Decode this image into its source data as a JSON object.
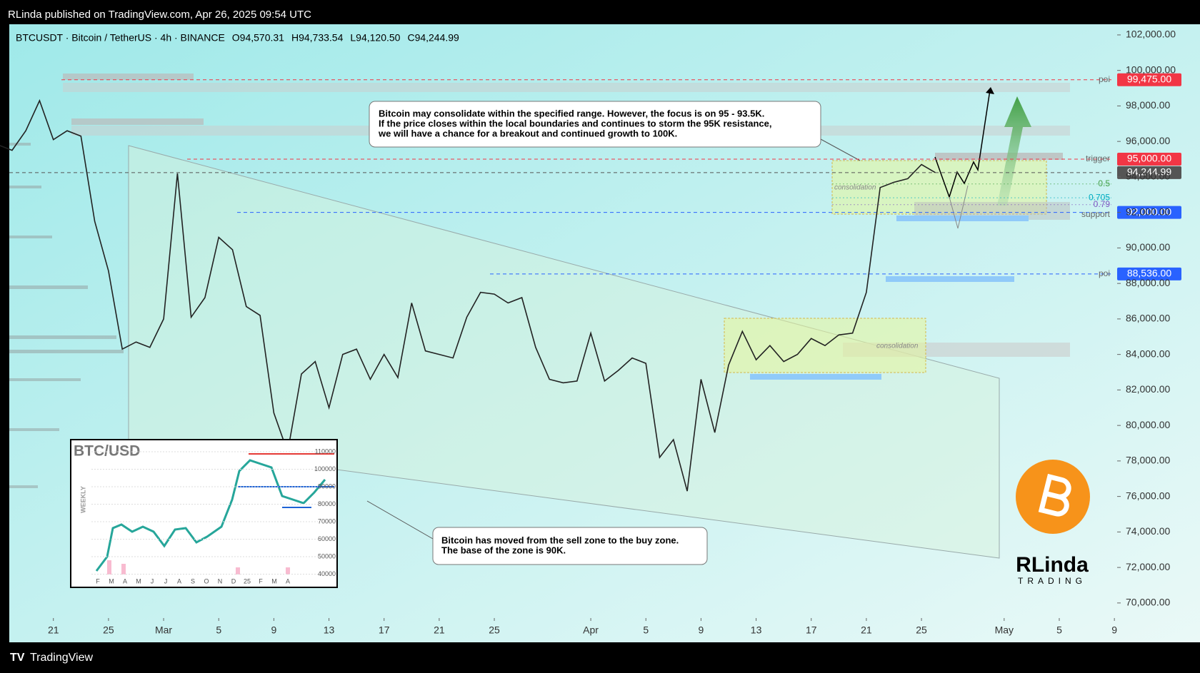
{
  "header": "RLinda published on TradingView.com, Apr 26, 2025 09:54 UTC",
  "footer": "TradingView",
  "chart_data": {
    "type": "line",
    "symbol": "BTCUSDT · Bitcoin / TetherUS · 4h · BINANCE",
    "ohlc": [
      "O94,570.31",
      "H94,733.54",
      "L94,120.50",
      "C94,244.99"
    ],
    "series": [
      {
        "color": "#222222",
        "x": [
          -4,
          -3,
          -2,
          -1,
          0,
          1,
          2,
          3,
          4,
          5,
          6,
          7,
          8,
          9,
          10,
          11,
          12,
          13,
          14,
          15,
          16,
          17,
          18,
          19,
          20,
          21,
          22,
          23,
          24,
          25,
          26,
          27,
          28,
          29,
          30,
          31,
          32,
          33,
          34,
          35,
          36,
          37,
          38,
          39,
          40,
          41,
          42,
          43,
          44,
          45,
          46,
          47,
          48,
          49,
          50,
          51,
          52,
          53,
          54,
          55,
          56,
          57,
          58,
          59,
          60,
          61,
          62,
          63,
          64
        ],
        "values": [
          95800,
          95500,
          96600,
          98300,
          96100,
          96600,
          96300,
          91500,
          88700,
          84300,
          84700,
          84400,
          86000,
          94200,
          86100,
          87200,
          90600,
          89900,
          86700,
          86200,
          80700,
          78500,
          82900,
          83600,
          81000,
          84000,
          84300,
          82600,
          84000,
          82700,
          86900,
          84200,
          84000,
          83800,
          86100,
          87500,
          87400,
          86900,
          87200,
          84400,
          82600,
          82400,
          82500,
          85200,
          82500,
          83100,
          83800,
          83500,
          78200,
          79200,
          76300,
          82600,
          79600,
          83400,
          85300,
          83700,
          84500,
          83600,
          84000,
          84900,
          84500,
          85100,
          85200,
          87500,
          93400,
          93700,
          93900,
          94700,
          94244.99
        ]
      }
    ],
    "xlim": [
      -3.2,
      77.2
    ],
    "xticks": [
      {
        "value": 0,
        "label": "21"
      },
      {
        "value": 4,
        "label": "25"
      },
      {
        "value": 8,
        "label": "Mar"
      },
      {
        "value": 12,
        "label": "5"
      },
      {
        "value": 16,
        "label": "9"
      },
      {
        "value": 20,
        "label": "13"
      },
      {
        "value": 24,
        "label": "17"
      },
      {
        "value": 28,
        "label": "21"
      },
      {
        "value": 32,
        "label": "25"
      },
      {
        "value": 39,
        "label": "Apr"
      },
      {
        "value": 43,
        "label": "5"
      },
      {
        "value": 47,
        "label": "9"
      },
      {
        "value": 51,
        "label": "13"
      },
      {
        "value": 55,
        "label": "17"
      },
      {
        "value": 59,
        "label": "21"
      },
      {
        "value": 63,
        "label": "25"
      },
      {
        "value": 69,
        "label": "May"
      },
      {
        "value": 73,
        "label": "5"
      },
      {
        "value": 77,
        "label": "9"
      }
    ],
    "ylim": [
      69150,
      102600
    ],
    "yticks": [
      {
        "value": 70000,
        "label": "70,000.00"
      },
      {
        "value": 72000,
        "label": "72,000.00"
      },
      {
        "value": 74000,
        "label": "74,000.00"
      },
      {
        "value": 76000,
        "label": "76,000.00"
      },
      {
        "value": 78000,
        "label": "78,000.00"
      },
      {
        "value": 80000,
        "label": "80,000.00"
      },
      {
        "value": 82000,
        "label": "82,000.00"
      },
      {
        "value": 84000,
        "label": "84,000.00"
      },
      {
        "value": 86000,
        "label": "86,000.00"
      },
      {
        "value": 88000,
        "label": "88,000.00"
      },
      {
        "value": 90000,
        "label": "90,000.00"
      },
      {
        "value": 92000,
        "label": "92,000.00"
      },
      {
        "value": 94000,
        "label": "94,000.00"
      },
      {
        "value": 96000,
        "label": "96,000.00"
      },
      {
        "value": 98000,
        "label": "98,000.00"
      },
      {
        "value": 100000,
        "label": "100,000.00"
      },
      {
        "value": 102000,
        "label": "102,000.00"
      }
    ],
    "levels": [
      {
        "name": "poi",
        "value": 99475,
        "label": "99,475.00",
        "color": "#f23645"
      },
      {
        "name": "trigger",
        "value": 95000,
        "label": "95,000.00",
        "color": "#f23645"
      },
      {
        "value": 94244.99,
        "label": "94,244.99",
        "color": "#555555"
      },
      {
        "name": "support",
        "value": 92000,
        "label": "92,000.00",
        "color": "#2962ff"
      },
      {
        "name": "poi",
        "value": 88536,
        "label": "88,536.00",
        "color": "#2962ff"
      }
    ],
    "fib": [
      {
        "ratio": 0.5,
        "price": 93602,
        "color": "#43a047"
      },
      {
        "ratio": 0.705,
        "price": 92827,
        "color": "#00acc1"
      },
      {
        "ratio": 0.79,
        "price": 92440,
        "color": "#7e57c2"
      }
    ],
    "zone_label": "consolidation",
    "notes": [
      [
        "Bitcoin may consolidate within the specified range. However, the focus is on 95 - 93.5K.",
        "If the price closes within the local boundaries and continues to storm the 95K resistance,",
        "we will have a chance for a breakout and continued growth to 100K."
      ],
      [
        "Bitcoin has moved from the sell zone to the buy zone.",
        "The base of the zone is 90K."
      ]
    ],
    "inset": {
      "title": "BTC/USD",
      "subtitle": "WEEKLY",
      "yticks": [
        "110000",
        "100000",
        "90000",
        "80000",
        "70000",
        "60000",
        "50000",
        "40000"
      ],
      "months": [
        "F",
        "M",
        "A",
        "M",
        "J",
        "J",
        "A",
        "S",
        "O",
        "N",
        "D",
        "25",
        "F",
        "M",
        "A"
      ]
    },
    "logo": [
      "RLinda",
      "TRADING"
    ]
  }
}
